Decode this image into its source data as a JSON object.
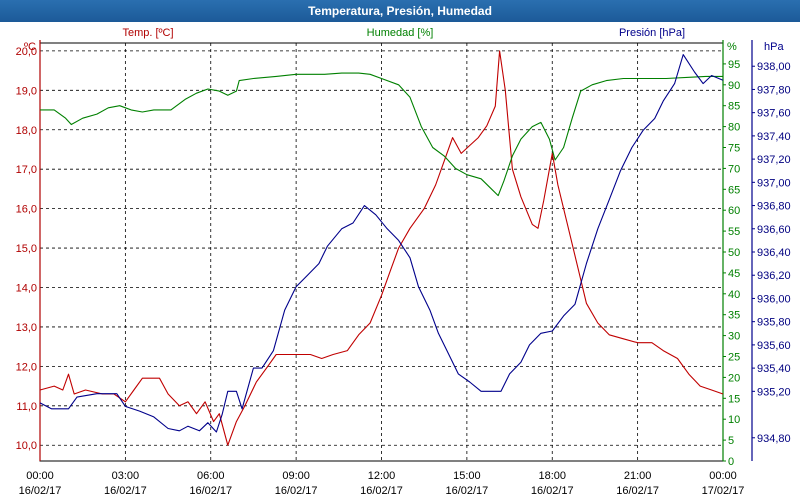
{
  "window": {
    "title": "Temperatura, Presión, Humedad"
  },
  "colors": {
    "temp": "#c00000",
    "hum": "#008000",
    "pres": "#00008b",
    "title_bar": "#1f5f9f"
  },
  "chart_data": {
    "type": "line",
    "title": "Temperatura, Presión, Humedad",
    "axes": {
      "temp": {
        "label": "Temp. [ºC]",
        "unit": "ºC",
        "range": [
          9.6,
          20.2
        ],
        "ticks": [
          "20,0",
          "19,0",
          "18,0",
          "17,0",
          "16,0",
          "15,0",
          "14,0",
          "13,0",
          "12,0",
          "11,0",
          "10,0"
        ],
        "tick_values": [
          20,
          19,
          18,
          17,
          16,
          15,
          14,
          13,
          12,
          11,
          10
        ]
      },
      "hum": {
        "label": "Humedad [%]",
        "unit": "%",
        "range": [
          0,
          100
        ],
        "ticks": [
          "95",
          "90",
          "85",
          "80",
          "75",
          "70",
          "65",
          "60",
          "55",
          "50",
          "45",
          "40",
          "35",
          "30",
          "25",
          "20",
          "15",
          "10",
          "5",
          "0"
        ],
        "tick_values": [
          95,
          90,
          85,
          80,
          75,
          70,
          65,
          60,
          55,
          50,
          45,
          40,
          35,
          30,
          25,
          20,
          15,
          10,
          5,
          0
        ]
      },
      "pres": {
        "label": "Presión [hPa]",
        "unit": "hPa",
        "range": [
          934.6,
          938.2
        ],
        "ticks": [
          "938,00",
          "937,80",
          "937,60",
          "937,40",
          "937,20",
          "937,00",
          "936,80",
          "936,60",
          "936,40",
          "936,20",
          "936,00",
          "935,80",
          "935,60",
          "935,40",
          "935,20",
          "934,80"
        ],
        "tick_values": [
          938.0,
          937.8,
          937.6,
          937.4,
          937.2,
          937.0,
          936.8,
          936.6,
          936.4,
          936.2,
          936.0,
          935.8,
          935.6,
          935.4,
          935.2,
          934.8
        ]
      }
    },
    "x_ticks": [
      {
        "time": "00:00",
        "date": "16/02/17",
        "hours": 0
      },
      {
        "time": "03:00",
        "date": "16/02/17",
        "hours": 3
      },
      {
        "time": "06:00",
        "date": "16/02/17",
        "hours": 6
      },
      {
        "time": "09:00",
        "date": "16/02/17",
        "hours": 9
      },
      {
        "time": "12:00",
        "date": "16/02/17",
        "hours": 12
      },
      {
        "time": "15:00",
        "date": "16/02/17",
        "hours": 15
      },
      {
        "time": "18:00",
        "date": "16/02/17",
        "hours": 18
      },
      {
        "time": "21:00",
        "date": "16/02/17",
        "hours": 21
      },
      {
        "time": "00:00",
        "date": "17/02/17",
        "hours": 24
      }
    ],
    "grid": true,
    "series": [
      {
        "axis": "temp",
        "points": [
          [
            0,
            11.4
          ],
          [
            0.5,
            11.5
          ],
          [
            0.8,
            11.4
          ],
          [
            1,
            11.8
          ],
          [
            1.2,
            11.3
          ],
          [
            1.6,
            11.4
          ],
          [
            2.2,
            11.3
          ],
          [
            2.6,
            11.3
          ],
          [
            3,
            11.1
          ],
          [
            3.3,
            11.4
          ],
          [
            3.6,
            11.7
          ],
          [
            4.2,
            11.7
          ],
          [
            4.5,
            11.3
          ],
          [
            4.9,
            11.0
          ],
          [
            5.2,
            11.1
          ],
          [
            5.5,
            10.8
          ],
          [
            5.8,
            11.1
          ],
          [
            6.1,
            10.6
          ],
          [
            6.3,
            10.8
          ],
          [
            6.6,
            10.0
          ],
          [
            6.9,
            10.6
          ],
          [
            7.2,
            11.0
          ],
          [
            7.6,
            11.6
          ],
          [
            8.0,
            12.0
          ],
          [
            8.3,
            12.3
          ],
          [
            9.5,
            12.3
          ],
          [
            9.9,
            12.2
          ],
          [
            10.3,
            12.3
          ],
          [
            10.8,
            12.4
          ],
          [
            11.2,
            12.8
          ],
          [
            11.6,
            13.1
          ],
          [
            12.0,
            13.8
          ],
          [
            12.3,
            14.4
          ],
          [
            12.6,
            15.0
          ],
          [
            13.0,
            15.5
          ],
          [
            13.5,
            16.0
          ],
          [
            13.9,
            16.6
          ],
          [
            14.2,
            17.2
          ],
          [
            14.5,
            17.8
          ],
          [
            14.8,
            17.4
          ],
          [
            15.1,
            17.6
          ],
          [
            15.4,
            17.8
          ],
          [
            15.7,
            18.1
          ],
          [
            16.0,
            18.6
          ],
          [
            16.15,
            20.0
          ],
          [
            16.35,
            19.0
          ],
          [
            16.6,
            17.0
          ],
          [
            16.9,
            16.3
          ],
          [
            17.3,
            15.6
          ],
          [
            17.5,
            15.5
          ],
          [
            17.7,
            16.2
          ],
          [
            18.0,
            17.4
          ],
          [
            18.2,
            16.6
          ],
          [
            18.5,
            15.7
          ],
          [
            18.9,
            14.5
          ],
          [
            19.2,
            13.6
          ],
          [
            19.6,
            13.1
          ],
          [
            20.0,
            12.8
          ],
          [
            20.5,
            12.7
          ],
          [
            21.0,
            12.6
          ],
          [
            21.5,
            12.6
          ],
          [
            21.9,
            12.4
          ],
          [
            22.4,
            12.2
          ],
          [
            22.8,
            11.8
          ],
          [
            23.2,
            11.5
          ],
          [
            23.6,
            11.4
          ],
          [
            24,
            11.3
          ]
        ]
      },
      {
        "axis": "hum",
        "points": [
          [
            0,
            84
          ],
          [
            0.5,
            84
          ],
          [
            0.9,
            82
          ],
          [
            1.1,
            80.5
          ],
          [
            1.5,
            82
          ],
          [
            2.0,
            83
          ],
          [
            2.4,
            84.5
          ],
          [
            2.8,
            85
          ],
          [
            3.2,
            84
          ],
          [
            3.6,
            83.5
          ],
          [
            4.0,
            84
          ],
          [
            4.6,
            84
          ],
          [
            5.1,
            86.5
          ],
          [
            5.5,
            88
          ],
          [
            5.9,
            89
          ],
          [
            6.3,
            88.5
          ],
          [
            6.6,
            87.5
          ],
          [
            6.9,
            88.5
          ],
          [
            7.0,
            91
          ],
          [
            7.5,
            91.5
          ],
          [
            8.3,
            92
          ],
          [
            9.0,
            92.5
          ],
          [
            10.0,
            92.5
          ],
          [
            10.6,
            92.8
          ],
          [
            11.2,
            92.8
          ],
          [
            11.6,
            92.5
          ],
          [
            12.0,
            91.5
          ],
          [
            12.6,
            90
          ],
          [
            13.0,
            87
          ],
          [
            13.4,
            80
          ],
          [
            13.8,
            75
          ],
          [
            14.2,
            73
          ],
          [
            14.6,
            70
          ],
          [
            15.0,
            68.5
          ],
          [
            15.5,
            67.5
          ],
          [
            15.8,
            65.5
          ],
          [
            16.1,
            63.5
          ],
          [
            16.3,
            67
          ],
          [
            16.6,
            73
          ],
          [
            16.9,
            77
          ],
          [
            17.3,
            80
          ],
          [
            17.6,
            81
          ],
          [
            17.9,
            77
          ],
          [
            18.1,
            72
          ],
          [
            18.4,
            75
          ],
          [
            18.7,
            82
          ],
          [
            19.0,
            88.5
          ],
          [
            19.4,
            90
          ],
          [
            19.9,
            91
          ],
          [
            20.5,
            91.5
          ],
          [
            21.2,
            91.5
          ],
          [
            22.0,
            91.5
          ],
          [
            22.8,
            91.8
          ],
          [
            23.4,
            92
          ],
          [
            24,
            92
          ]
        ]
      },
      {
        "axis": "pres",
        "points": [
          [
            0,
            935.1
          ],
          [
            0.4,
            935.05
          ],
          [
            1.0,
            935.05
          ],
          [
            1.3,
            935.15
          ],
          [
            2.0,
            935.18
          ],
          [
            2.7,
            935.18
          ],
          [
            3.0,
            935.07
          ],
          [
            3.5,
            935.03
          ],
          [
            4.0,
            934.98
          ],
          [
            4.5,
            934.88
          ],
          [
            4.9,
            934.86
          ],
          [
            5.2,
            934.9
          ],
          [
            5.6,
            934.86
          ],
          [
            5.9,
            934.93
          ],
          [
            6.2,
            934.85
          ],
          [
            6.4,
            935.0
          ],
          [
            6.6,
            935.2
          ],
          [
            6.9,
            935.2
          ],
          [
            7.1,
            935.05
          ],
          [
            7.5,
            935.4
          ],
          [
            7.8,
            935.4
          ],
          [
            8.2,
            935.55
          ],
          [
            8.6,
            935.9
          ],
          [
            9.0,
            936.1
          ],
          [
            9.4,
            936.2
          ],
          [
            9.8,
            936.3
          ],
          [
            10.1,
            936.45
          ],
          [
            10.6,
            936.6
          ],
          [
            11.0,
            936.65
          ],
          [
            11.4,
            936.8
          ],
          [
            11.8,
            936.72
          ],
          [
            12.2,
            936.6
          ],
          [
            12.6,
            936.5
          ],
          [
            13.0,
            936.35
          ],
          [
            13.3,
            936.1
          ],
          [
            13.7,
            935.9
          ],
          [
            14.0,
            935.7
          ],
          [
            14.3,
            935.55
          ],
          [
            14.7,
            935.35
          ],
          [
            15.1,
            935.28
          ],
          [
            15.5,
            935.2
          ],
          [
            15.9,
            935.2
          ],
          [
            16.2,
            935.2
          ],
          [
            16.5,
            935.35
          ],
          [
            16.9,
            935.45
          ],
          [
            17.2,
            935.6
          ],
          [
            17.6,
            935.7
          ],
          [
            18.0,
            935.72
          ],
          [
            18.4,
            935.85
          ],
          [
            18.8,
            935.95
          ],
          [
            19.2,
            936.3
          ],
          [
            19.6,
            936.6
          ],
          [
            20.0,
            936.85
          ],
          [
            20.4,
            937.1
          ],
          [
            20.8,
            937.3
          ],
          [
            21.2,
            937.45
          ],
          [
            21.6,
            937.55
          ],
          [
            21.9,
            937.7
          ],
          [
            22.3,
            937.85
          ],
          [
            22.6,
            938.1
          ],
          [
            23.0,
            937.95
          ],
          [
            23.3,
            937.85
          ],
          [
            23.6,
            937.92
          ],
          [
            24,
            937.88
          ]
        ]
      }
    ]
  }
}
